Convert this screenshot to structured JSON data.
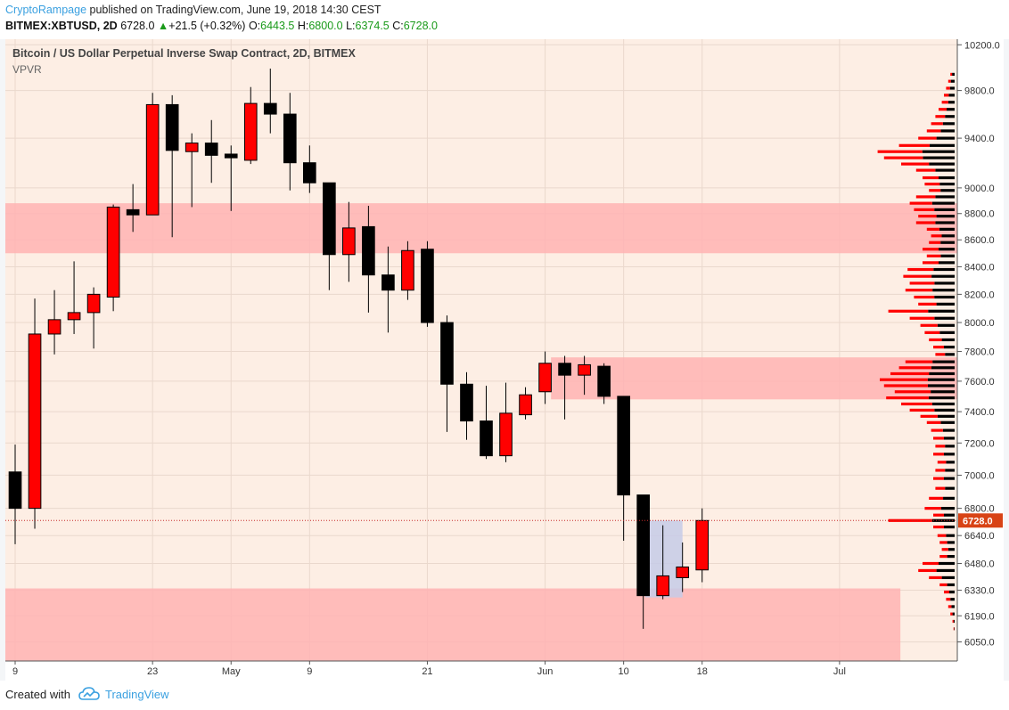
{
  "header": {
    "author": "CryptoRampage",
    "published": "published on TradingView.com, June 19, 2018 14:30 CEST",
    "symbol": "BITMEX:XBTUSD, 2D",
    "price": "6728.0",
    "change_icon": "up-triangle-icon",
    "change": "+21.5 (+0.32%)",
    "o_label": "O:",
    "o_val": "6443.5",
    "h_label": "H:",
    "h_val": "6800.0",
    "l_label": "L:",
    "l_val": "6374.5",
    "c_label": "C:",
    "c_val": "6728.0"
  },
  "footer": {
    "created_with": "Created with",
    "brand": "TradingView",
    "brand_icon": "tradingview-cloud-icon"
  },
  "chart_data": {
    "type": "candlestick",
    "title": "Bitcoin / US Dollar Perpetual Inverse Swap Contract, 2D, BITMEX",
    "indicator": "VPVR",
    "ylim": [
      5950,
      10250
    ],
    "price_scale": "log",
    "yticks": [
      10200,
      9800,
      9400,
      9000,
      8800,
      8600,
      8400,
      8200,
      8000,
      7800,
      7600,
      7400,
      7200,
      7000,
      6800,
      6640,
      6480,
      6330,
      6190,
      6050
    ],
    "last_price_label": "6728.0",
    "last_price": 6728,
    "xticks": [
      {
        "label": "9",
        "slot": 0
      },
      {
        "label": "23",
        "slot": 7
      },
      {
        "label": "May",
        "slot": 11
      },
      {
        "label": "9",
        "slot": 15
      },
      {
        "label": "21",
        "slot": 21
      },
      {
        "label": "Jun",
        "slot": 27
      },
      {
        "label": "10",
        "slot": 31
      },
      {
        "label": "18",
        "slot": 35
      },
      {
        "label": "Jul",
        "slot": 42
      }
    ],
    "slots_total": 48.5,
    "candles": [
      {
        "o": 7020,
        "h": 7190,
        "l": 6590,
        "c": 6800
      },
      {
        "o": 6800,
        "h": 8170,
        "l": 6680,
        "c": 7920
      },
      {
        "o": 7920,
        "h": 8230,
        "l": 7780,
        "c": 8020
      },
      {
        "o": 8020,
        "h": 8440,
        "l": 7920,
        "c": 8070
      },
      {
        "o": 8070,
        "h": 8250,
        "l": 7820,
        "c": 8200
      },
      {
        "o": 8180,
        "h": 8870,
        "l": 8080,
        "c": 8850
      },
      {
        "o": 8830,
        "h": 9030,
        "l": 8660,
        "c": 8790
      },
      {
        "o": 8790,
        "h": 9780,
        "l": 8790,
        "c": 9680
      },
      {
        "o": 9680,
        "h": 9760,
        "l": 8620,
        "c": 9300
      },
      {
        "o": 9290,
        "h": 9440,
        "l": 8850,
        "c": 9360
      },
      {
        "o": 9360,
        "h": 9550,
        "l": 9040,
        "c": 9260
      },
      {
        "o": 9270,
        "h": 9340,
        "l": 8820,
        "c": 9240
      },
      {
        "o": 9220,
        "h": 9830,
        "l": 9190,
        "c": 9690
      },
      {
        "o": 9690,
        "h": 9990,
        "l": 9440,
        "c": 9600
      },
      {
        "o": 9600,
        "h": 9780,
        "l": 8980,
        "c": 9200
      },
      {
        "o": 9200,
        "h": 9340,
        "l": 8960,
        "c": 9040
      },
      {
        "o": 9040,
        "h": 9040,
        "l": 8230,
        "c": 8490
      },
      {
        "o": 8490,
        "h": 8890,
        "l": 8290,
        "c": 8690
      },
      {
        "o": 8700,
        "h": 8860,
        "l": 8070,
        "c": 8340
      },
      {
        "o": 8340,
        "h": 8550,
        "l": 7930,
        "c": 8230
      },
      {
        "o": 8230,
        "h": 8590,
        "l": 8160,
        "c": 8520
      },
      {
        "o": 8530,
        "h": 8590,
        "l": 7970,
        "c": 8000
      },
      {
        "o": 8000,
        "h": 8050,
        "l": 7270,
        "c": 7580
      },
      {
        "o": 7580,
        "h": 7660,
        "l": 7220,
        "c": 7340
      },
      {
        "o": 7340,
        "h": 7570,
        "l": 7100,
        "c": 7120
      },
      {
        "o": 7120,
        "h": 7590,
        "l": 7080,
        "c": 7390
      },
      {
        "o": 7380,
        "h": 7560,
        "l": 7350,
        "c": 7510
      },
      {
        "o": 7530,
        "h": 7800,
        "l": 7450,
        "c": 7720
      },
      {
        "o": 7720,
        "h": 7770,
        "l": 7350,
        "c": 7640
      },
      {
        "o": 7640,
        "h": 7770,
        "l": 7510,
        "c": 7710
      },
      {
        "o": 7700,
        "h": 7720,
        "l": 7450,
        "c": 7500
      },
      {
        "o": 7500,
        "h": 7500,
        "l": 6610,
        "c": 6880
      },
      {
        "o": 6880,
        "h": 6880,
        "l": 6120,
        "c": 6300
      },
      {
        "o": 6300,
        "h": 6700,
        "l": 6280,
        "c": 6410
      },
      {
        "o": 6400,
        "h": 6600,
        "l": 6320,
        "c": 6460
      },
      {
        "o": 6443.5,
        "h": 6800,
        "l": 6374.5,
        "c": 6728
      }
    ],
    "zones": [
      {
        "from_slot": 0,
        "to_slot": 48.5,
        "low": 8500,
        "high": 8880
      },
      {
        "from_slot": 27.8,
        "to_slot": 48.5,
        "low": 7480,
        "high": 7760
      },
      {
        "from_slot": 0,
        "to_slot": 45.6,
        "low": 5950,
        "high": 6340
      }
    ],
    "highlight_box": {
      "from_slot": 32.6,
      "to_slot": 34.5,
      "low": 6290,
      "high": 6728
    },
    "vpvr": [
      {
        "price": 9940,
        "total": 0.04,
        "share": 0.6
      },
      {
        "price": 9880,
        "total": 0.06,
        "share": 0.6
      },
      {
        "price": 9820,
        "total": 0.08,
        "share": 0.55
      },
      {
        "price": 9760,
        "total": 0.1,
        "share": 0.55
      },
      {
        "price": 9700,
        "total": 0.12,
        "share": 0.5
      },
      {
        "price": 9640,
        "total": 0.15,
        "share": 0.5
      },
      {
        "price": 9580,
        "total": 0.18,
        "share": 0.5
      },
      {
        "price": 9520,
        "total": 0.22,
        "share": 0.5
      },
      {
        "price": 9460,
        "total": 0.26,
        "share": 0.5
      },
      {
        "price": 9400,
        "total": 0.34,
        "share": 0.5
      },
      {
        "price": 9340,
        "total": 0.52,
        "share": 0.45
      },
      {
        "price": 9290,
        "total": 0.72,
        "share": 0.42
      },
      {
        "price": 9240,
        "total": 0.66,
        "share": 0.45
      },
      {
        "price": 9190,
        "total": 0.5,
        "share": 0.48
      },
      {
        "price": 9140,
        "total": 0.36,
        "share": 0.5
      },
      {
        "price": 9080,
        "total": 0.3,
        "share": 0.5
      },
      {
        "price": 9030,
        "total": 0.28,
        "share": 0.5
      },
      {
        "price": 8980,
        "total": 0.24,
        "share": 0.55
      },
      {
        "price": 8930,
        "total": 0.36,
        "share": 0.5
      },
      {
        "price": 8880,
        "total": 0.42,
        "share": 0.5
      },
      {
        "price": 8830,
        "total": 0.38,
        "share": 0.5
      },
      {
        "price": 8780,
        "total": 0.34,
        "share": 0.5
      },
      {
        "price": 8730,
        "total": 0.36,
        "share": 0.5
      },
      {
        "price": 8680,
        "total": 0.26,
        "share": 0.55
      },
      {
        "price": 8630,
        "total": 0.22,
        "share": 0.55
      },
      {
        "price": 8580,
        "total": 0.24,
        "share": 0.55
      },
      {
        "price": 8530,
        "total": 0.3,
        "share": 0.5
      },
      {
        "price": 8480,
        "total": 0.26,
        "share": 0.5
      },
      {
        "price": 8430,
        "total": 0.3,
        "share": 0.5
      },
      {
        "price": 8380,
        "total": 0.44,
        "share": 0.45
      },
      {
        "price": 8330,
        "total": 0.48,
        "share": 0.45
      },
      {
        "price": 8280,
        "total": 0.42,
        "share": 0.45
      },
      {
        "price": 8230,
        "total": 0.46,
        "share": 0.45
      },
      {
        "price": 8180,
        "total": 0.38,
        "share": 0.5
      },
      {
        "price": 8130,
        "total": 0.34,
        "share": 0.5
      },
      {
        "price": 8080,
        "total": 0.62,
        "share": 0.4
      },
      {
        "price": 8030,
        "total": 0.42,
        "share": 0.45
      },
      {
        "price": 7980,
        "total": 0.32,
        "share": 0.5
      },
      {
        "price": 7930,
        "total": 0.28,
        "share": 0.5
      },
      {
        "price": 7880,
        "total": 0.24,
        "share": 0.5
      },
      {
        "price": 7830,
        "total": 0.2,
        "share": 0.5
      },
      {
        "price": 7780,
        "total": 0.18,
        "share": 0.5
      },
      {
        "price": 7730,
        "total": 0.46,
        "share": 0.45
      },
      {
        "price": 7690,
        "total": 0.52,
        "share": 0.42
      },
      {
        "price": 7650,
        "total": 0.6,
        "share": 0.4
      },
      {
        "price": 7610,
        "total": 0.7,
        "share": 0.36
      },
      {
        "price": 7570,
        "total": 0.66,
        "share": 0.38
      },
      {
        "price": 7530,
        "total": 0.56,
        "share": 0.4
      },
      {
        "price": 7490,
        "total": 0.64,
        "share": 0.38
      },
      {
        "price": 7450,
        "total": 0.5,
        "share": 0.42
      },
      {
        "price": 7410,
        "total": 0.42,
        "share": 0.45
      },
      {
        "price": 7370,
        "total": 0.32,
        "share": 0.5
      },
      {
        "price": 7330,
        "total": 0.26,
        "share": 0.5
      },
      {
        "price": 7280,
        "total": 0.22,
        "share": 0.5
      },
      {
        "price": 7230,
        "total": 0.2,
        "share": 0.5
      },
      {
        "price": 7180,
        "total": 0.18,
        "share": 0.5
      },
      {
        "price": 7130,
        "total": 0.2,
        "share": 0.5
      },
      {
        "price": 7080,
        "total": 0.16,
        "share": 0.5
      },
      {
        "price": 7030,
        "total": 0.18,
        "share": 0.5
      },
      {
        "price": 6980,
        "total": 0.2,
        "share": 0.5
      },
      {
        "price": 6920,
        "total": 0.18,
        "share": 0.5
      },
      {
        "price": 6860,
        "total": 0.24,
        "share": 0.45
      },
      {
        "price": 6800,
        "total": 0.28,
        "share": 0.45
      },
      {
        "price": 6760,
        "total": 0.2,
        "share": 0.5
      },
      {
        "price": 6728,
        "total": 0.62,
        "share": 0.34
      },
      {
        "price": 6690,
        "total": 0.2,
        "share": 0.5
      },
      {
        "price": 6640,
        "total": 0.16,
        "share": 0.5
      },
      {
        "price": 6600,
        "total": 0.14,
        "share": 0.5
      },
      {
        "price": 6560,
        "total": 0.12,
        "share": 0.5
      },
      {
        "price": 6520,
        "total": 0.14,
        "share": 0.5
      },
      {
        "price": 6480,
        "total": 0.3,
        "share": 0.5
      },
      {
        "price": 6440,
        "total": 0.34,
        "share": 0.5
      },
      {
        "price": 6400,
        "total": 0.24,
        "share": 0.5
      },
      {
        "price": 6360,
        "total": 0.14,
        "share": 0.5
      },
      {
        "price": 6320,
        "total": 0.1,
        "share": 0.5
      },
      {
        "price": 6280,
        "total": 0.08,
        "share": 0.5
      },
      {
        "price": 6240,
        "total": 0.06,
        "share": 0.5
      },
      {
        "price": 6200,
        "total": 0.04,
        "share": 0.5
      },
      {
        "price": 6160,
        "total": 0.02,
        "share": 0.5
      },
      {
        "price": 6120,
        "total": 0.01,
        "share": 0.5
      }
    ]
  },
  "colors": {
    "background": "#fdeee4",
    "zone": "#ffb3b3",
    "up_candle": "#ff0000",
    "down_candle": "#000000",
    "vpvr_buy": "#000000",
    "vpvr_sell": "#ff0000",
    "highlight": "#c5cbe8",
    "price_label_bg": "#d84315",
    "author": "#3aa0e0",
    "positive": "#1a9a1a"
  }
}
